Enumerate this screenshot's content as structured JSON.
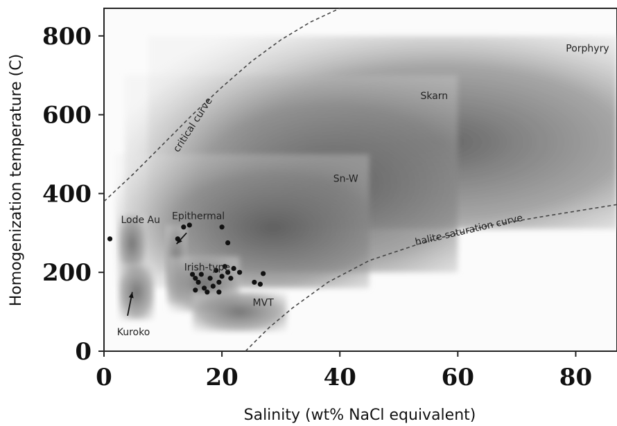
{
  "chart_data": {
    "type": "scatter",
    "title": "",
    "xlabel": "Salinity (wt% NaCl equivalent)",
    "ylabel": "Homogenization temperature (C)",
    "xlim": [
      0,
      87
    ],
    "ylim": [
      0,
      870
    ],
    "x_ticks": [
      0,
      20,
      40,
      60,
      80
    ],
    "y_ticks": [
      0,
      200,
      400,
      600,
      800
    ],
    "x_tick_labels": [
      "0",
      "20",
      "40",
      "60",
      "80"
    ],
    "y_tick_labels": [
      "0",
      "200",
      "400",
      "600",
      "800"
    ],
    "grid": false,
    "regions": [
      {
        "name": "Porphyry",
        "x": [
          7.5,
          87
        ],
        "y": [
          310,
          800
        ],
        "label_at": [
          82,
          760
        ]
      },
      {
        "name": "Skarn",
        "x": [
          3.5,
          60
        ],
        "y": [
          200,
          700
        ],
        "label_at": [
          56,
          640
        ]
      },
      {
        "name": "Sn-W",
        "x": [
          2,
          45
        ],
        "y": [
          160,
          500
        ],
        "label_at": [
          41,
          430
        ]
      },
      {
        "name": "Lode Au",
        "x": [
          2.5,
          7
        ],
        "y": [
          200,
          345
        ],
        "label_at": [
          6.2,
          325
        ]
      },
      {
        "name": "Epithermal",
        "x": [
          10.5,
          14
        ],
        "y": [
          120,
          320
        ],
        "label_at": [
          16,
          335
        ]
      },
      {
        "name": "Irish-type",
        "x": [
          11,
          23
        ],
        "y": [
          100,
          240
        ],
        "label_at": [
          17.5,
          205
        ]
      },
      {
        "name": "MVT",
        "x": [
          15,
          31
        ],
        "y": [
          50,
          150
        ],
        "label_at": [
          27,
          115
        ]
      },
      {
        "name": "Kuroko",
        "x": [
          2.5,
          8.5
        ],
        "y": [
          80,
          220
        ],
        "label_at": [
          5,
          40
        ]
      }
    ],
    "curves": [
      {
        "name": "critical curve",
        "points": [
          [
            0,
            380
          ],
          [
            5,
            450
          ],
          [
            10,
            525
          ],
          [
            15,
            600
          ],
          [
            20,
            670
          ],
          [
            25,
            735
          ],
          [
            30,
            790
          ],
          [
            35,
            835
          ],
          [
            40,
            870
          ]
        ]
      },
      {
        "name": "halite saturation curve",
        "points": [
          [
            24,
            0
          ],
          [
            28,
            60
          ],
          [
            32,
            110
          ],
          [
            38,
            175
          ],
          [
            45,
            230
          ],
          [
            55,
            280
          ],
          [
            65,
            318
          ],
          [
            75,
            343
          ],
          [
            87,
            372
          ]
        ]
      }
    ],
    "points": [
      {
        "x": 1.0,
        "y": 285
      },
      {
        "x": 12.5,
        "y": 285
      },
      {
        "x": 13.5,
        "y": 315
      },
      {
        "x": 14.5,
        "y": 320
      },
      {
        "x": 20.0,
        "y": 315
      },
      {
        "x": 21.0,
        "y": 275
      },
      {
        "x": 15.0,
        "y": 195
      },
      {
        "x": 15.5,
        "y": 185
      },
      {
        "x": 16.0,
        "y": 175
      },
      {
        "x": 16.5,
        "y": 195
      },
      {
        "x": 17.0,
        "y": 160
      },
      {
        "x": 18.0,
        "y": 185
      },
      {
        "x": 18.5,
        "y": 165
      },
      {
        "x": 19.0,
        "y": 205
      },
      {
        "x": 19.5,
        "y": 175
      },
      {
        "x": 20.0,
        "y": 190
      },
      {
        "x": 20.5,
        "y": 215
      },
      {
        "x": 21.0,
        "y": 200
      },
      {
        "x": 21.5,
        "y": 185
      },
      {
        "x": 22.0,
        "y": 210
      },
      {
        "x": 15.5,
        "y": 155
      },
      {
        "x": 17.5,
        "y": 150
      },
      {
        "x": 19.5,
        "y": 150
      },
      {
        "x": 25.5,
        "y": 175
      },
      {
        "x": 26.5,
        "y": 170
      },
      {
        "x": 27.0,
        "y": 197
      },
      {
        "x": 23.0,
        "y": 200
      }
    ],
    "arrows": [
      {
        "from": [
          14.0,
          300
        ],
        "to": [
          12.3,
          272
        ]
      },
      {
        "from": [
          4.0,
          90
        ],
        "to": [
          4.8,
          150
        ]
      }
    ]
  }
}
